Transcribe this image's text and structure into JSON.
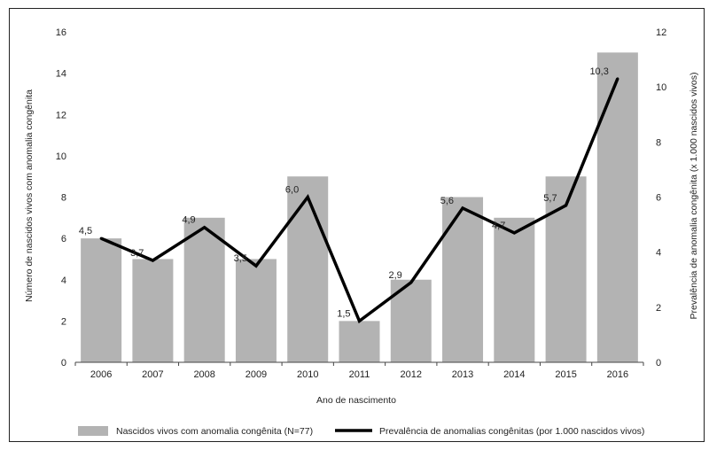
{
  "chart_data": {
    "type": "bar",
    "categories": [
      "2006",
      "2007",
      "2008",
      "2009",
      "2010",
      "2011",
      "2012",
      "2013",
      "2014",
      "2015",
      "2016"
    ],
    "xlabel": "Ano de nascimento",
    "ylabel": "Número de nascidos vivos com anomalia congênita",
    "y2label": "Prevalência de anomalia congênita (x 1.000 nascidos vivos)",
    "ylim": [
      0,
      16
    ],
    "y2lim": [
      0,
      12
    ],
    "yticks": [
      0,
      2,
      4,
      6,
      8,
      10,
      12,
      14,
      16
    ],
    "y2ticks": [
      0,
      2,
      4,
      6,
      8,
      10,
      12
    ],
    "grid": false,
    "legend_position": "bottom",
    "series": [
      {
        "name": "Nascidos vivos com anomalia congênita (N=77)",
        "kind": "bar",
        "axis": "left",
        "color": "#b3b3b3",
        "values": [
          6,
          5,
          7,
          5,
          9,
          2,
          4,
          8,
          7,
          9,
          15
        ]
      },
      {
        "name": "Prevalência de anomalias congênitas (por 1.000 nascidos vivos)",
        "kind": "line",
        "axis": "right",
        "color": "#000000",
        "values": [
          4.5,
          3.7,
          4.9,
          3.5,
          6.0,
          1.5,
          2.9,
          5.6,
          4.7,
          5.7,
          10.3
        ],
        "labels": [
          "4,5",
          "3,7",
          "4,9",
          "3,5",
          "6,0",
          "1,5",
          "2,9",
          "5,6",
          "4,7",
          "5,7",
          "10,3"
        ]
      }
    ]
  }
}
